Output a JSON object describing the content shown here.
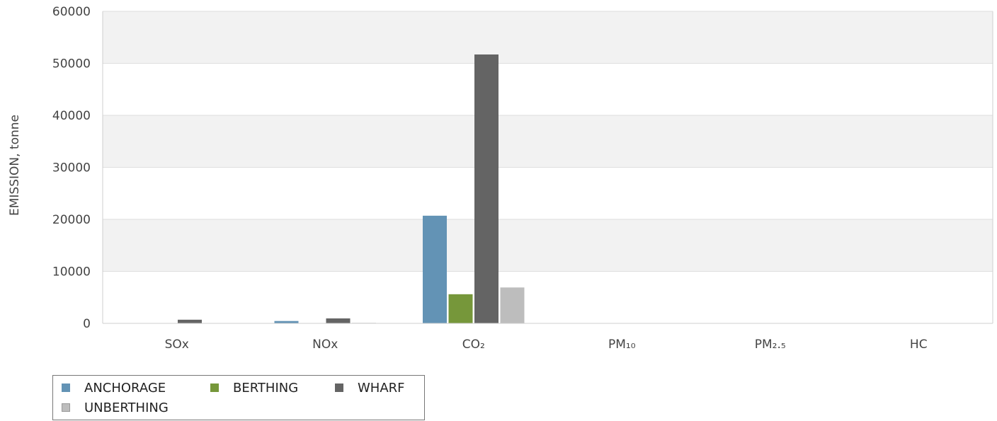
{
  "chart_data": {
    "type": "bar",
    "ylabel": "EMISSION, tonne",
    "xlabel": "",
    "ylim": [
      0,
      60000
    ],
    "yticks": [
      0,
      10000,
      20000,
      30000,
      40000,
      50000,
      60000
    ],
    "y_tick_labels": [
      "0",
      "10000",
      "20000",
      "30000",
      "40000",
      "50000",
      "60000"
    ],
    "grid": true,
    "legend_placement": "bottom-left",
    "categories": [
      "SOx",
      "NOx",
      "CO₂",
      "PM₁₀",
      "PM₂.₅",
      "HC"
    ],
    "series": [
      {
        "name": "ANCHORAGE",
        "color": "#6393b5",
        "values": [
          50,
          450,
          20700,
          10,
          10,
          20
        ]
      },
      {
        "name": "BERTHING",
        "color": "#76973a",
        "values": [
          10,
          60,
          5600,
          2,
          2,
          5
        ]
      },
      {
        "name": "WHARF",
        "color": "#646464",
        "values": [
          700,
          950,
          51700,
          30,
          30,
          50
        ]
      },
      {
        "name": "UNBERTHING",
        "color": "#bdbdbd",
        "values": [
          20,
          100,
          6900,
          3,
          3,
          8
        ]
      }
    ]
  }
}
